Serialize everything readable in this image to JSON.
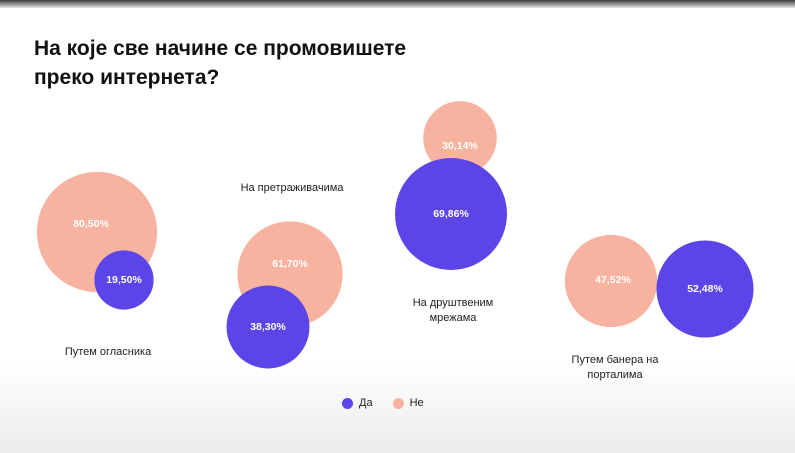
{
  "title": "На које све начине се промовишете преко интернета?",
  "colors": {
    "yes": "#5b44e8",
    "no": "#f8b2a0"
  },
  "chart_data": {
    "type": "bubble",
    "title": "На које све начине се промовишете преко интернета?",
    "categories": [
      "Путем огласника",
      "На претраживачима",
      "На друштвеним мрежама",
      "Путем банера на порталима"
    ],
    "category_lines": [
      [
        "Путем огласника"
      ],
      [
        "На претраживачима"
      ],
      [
        "На друштвеним",
        "мрежама"
      ],
      [
        "Путем банера на",
        "порталима"
      ]
    ],
    "series": [
      {
        "name": "Да",
        "values": [
          19.5,
          38.3,
          69.86,
          52.48
        ],
        "labels": [
          "19,50%",
          "38,30%",
          "69,86%",
          "52,48%"
        ]
      },
      {
        "name": "Не",
        "values": [
          80.5,
          61.7,
          30.14,
          47.52
        ],
        "labels": [
          "80,50%",
          "61,70%",
          "30,14%",
          "47,52%"
        ]
      }
    ],
    "legend": {
      "position": "bottom-center"
    }
  }
}
